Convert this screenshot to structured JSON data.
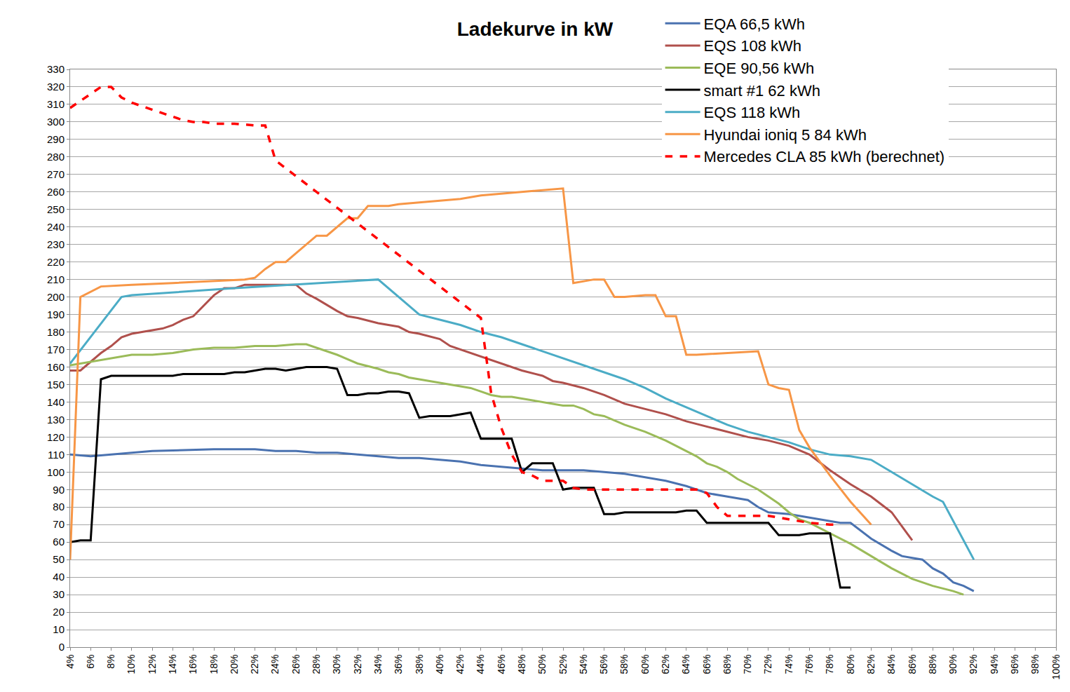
{
  "chart_data": {
    "type": "line",
    "title": "Ladekurve in kW",
    "xlim": [
      4,
      100
    ],
    "xticks": [
      {
        "value": 4,
        "label": "4%"
      },
      {
        "value": 6,
        "label": "6%"
      },
      {
        "value": 8,
        "label": "8%"
      },
      {
        "value": 10,
        "label": "10%"
      },
      {
        "value": 12,
        "label": "12%"
      },
      {
        "value": 14,
        "label": "14%"
      },
      {
        "value": 16,
        "label": "16%"
      },
      {
        "value": 18,
        "label": "18%"
      },
      {
        "value": 20,
        "label": "20%"
      },
      {
        "value": 22,
        "label": "22%"
      },
      {
        "value": 24,
        "label": "24%"
      },
      {
        "value": 26,
        "label": "26%"
      },
      {
        "value": 28,
        "label": "28%"
      },
      {
        "value": 30,
        "label": "30%"
      },
      {
        "value": 32,
        "label": "32%"
      },
      {
        "value": 34,
        "label": "34%"
      },
      {
        "value": 36,
        "label": "36%"
      },
      {
        "value": 38,
        "label": "38%"
      },
      {
        "value": 40,
        "label": "40%"
      },
      {
        "value": 42,
        "label": "42%"
      },
      {
        "value": 44,
        "label": "44%"
      },
      {
        "value": 46,
        "label": "46%"
      },
      {
        "value": 48,
        "label": "48%"
      },
      {
        "value": 50,
        "label": "50%"
      },
      {
        "value": 52,
        "label": "52%"
      },
      {
        "value": 54,
        "label": "54%"
      },
      {
        "value": 56,
        "label": "56%"
      },
      {
        "value": 58,
        "label": "58%"
      },
      {
        "value": 60,
        "label": "60%"
      },
      {
        "value": 62,
        "label": "62%"
      },
      {
        "value": 64,
        "label": "64%"
      },
      {
        "value": 66,
        "label": "66%"
      },
      {
        "value": 68,
        "label": "68%"
      },
      {
        "value": 70,
        "label": "70%"
      },
      {
        "value": 72,
        "label": "72%"
      },
      {
        "value": 74,
        "label": "74%"
      },
      {
        "value": 76,
        "label": "76%"
      },
      {
        "value": 78,
        "label": "78%"
      },
      {
        "value": 80,
        "label": "80%"
      },
      {
        "value": 82,
        "label": "82%"
      },
      {
        "value": 84,
        "label": "84%"
      },
      {
        "value": 86,
        "label": "86%"
      },
      {
        "value": 88,
        "label": "88%"
      },
      {
        "value": 90,
        "label": "90%"
      },
      {
        "value": 92,
        "label": "92%"
      },
      {
        "value": 94,
        "label": "94%"
      },
      {
        "value": 96,
        "label": "96%"
      },
      {
        "value": 98,
        "label": "98%"
      },
      {
        "value": 100,
        "label": "100%"
      }
    ],
    "ylim": [
      0,
      330
    ],
    "yticks": [
      0,
      10,
      20,
      30,
      40,
      50,
      60,
      70,
      80,
      90,
      100,
      110,
      120,
      130,
      140,
      150,
      160,
      170,
      180,
      190,
      200,
      210,
      220,
      230,
      240,
      250,
      260,
      270,
      280,
      290,
      300,
      310,
      320,
      330
    ],
    "grid": true,
    "legend": "top right",
    "series": [
      {
        "name": "EQA 66,5 kWh",
        "color": "#4a72b0",
        "line_style": "solid",
        "x": [
          4,
          6,
          8,
          10,
          12,
          18,
          22,
          24,
          26,
          28,
          30,
          32,
          34,
          36,
          38,
          40,
          42,
          44,
          46,
          48,
          50,
          54,
          56,
          58,
          60,
          62,
          64,
          66,
          68,
          70,
          71,
          72,
          74,
          76,
          78,
          79,
          80,
          82,
          84,
          85,
          86,
          87,
          88,
          89,
          90,
          91,
          92
        ],
        "values": [
          110,
          109,
          110,
          111,
          112,
          113,
          113,
          112,
          112,
          111,
          111,
          110,
          109,
          108,
          108,
          107,
          106,
          104,
          103,
          102,
          101,
          101,
          100,
          99,
          97,
          95,
          92,
          88,
          86,
          84,
          80,
          77,
          76,
          74,
          72,
          71,
          71,
          62,
          55,
          52,
          51,
          50,
          45,
          42,
          37,
          35,
          32
        ]
      },
      {
        "name": "EQS 108 kWh",
        "color": "#b0504c",
        "line_style": "solid",
        "x": [
          4,
          5,
          6,
          7,
          8,
          9,
          10,
          12,
          13,
          14,
          15,
          16,
          17,
          18,
          19,
          20,
          21,
          26,
          27,
          28,
          30,
          31,
          32,
          34,
          36,
          37,
          38,
          40,
          41,
          42,
          44,
          46,
          48,
          50,
          51,
          52,
          54,
          56,
          58,
          60,
          62,
          64,
          66,
          68,
          70,
          72,
          74,
          76,
          78,
          80,
          82,
          84,
          86
        ],
        "values": [
          158,
          158,
          163,
          168,
          172,
          177,
          179,
          181,
          182,
          184,
          187,
          189,
          195,
          201,
          205,
          205,
          207,
          207,
          202,
          199,
          192,
          189,
          188,
          185,
          183,
          180,
          179,
          176,
          172,
          170,
          166,
          162,
          158,
          155,
          152,
          151,
          148,
          144,
          139,
          136,
          133,
          129,
          126,
          123,
          120,
          118,
          115,
          110,
          101,
          93,
          86,
          77,
          61
        ]
      },
      {
        "name": "EQE 90,56 kWh",
        "color": "#9bbb59",
        "line_style": "solid",
        "x": [
          4,
          6,
          8,
          10,
          12,
          14,
          16,
          18,
          20,
          22,
          24,
          26,
          27,
          28,
          30,
          32,
          34,
          35,
          36,
          37,
          38,
          40,
          42,
          43,
          44,
          45,
          46,
          47,
          48,
          50,
          52,
          53,
          54,
          55,
          56,
          58,
          60,
          62,
          63,
          64,
          65,
          66,
          67,
          68,
          69,
          70,
          71,
          72,
          73,
          74,
          75,
          76,
          78,
          80,
          82,
          84,
          85,
          86,
          88,
          90,
          91
        ],
        "values": [
          161,
          163,
          165,
          167,
          167,
          168,
          170,
          171,
          171,
          172,
          172,
          173,
          173,
          171,
          167,
          162,
          159,
          157,
          156,
          154,
          153,
          151,
          149,
          148,
          146,
          144,
          143,
          143,
          142,
          140,
          138,
          138,
          136,
          133,
          132,
          127,
          123,
          118,
          115,
          112,
          109,
          105,
          103,
          100,
          96,
          93,
          90,
          86,
          82,
          77,
          73,
          71,
          65,
          59,
          52,
          45,
          42,
          39,
          35,
          32,
          30
        ]
      },
      {
        "name": "smart #1 62 kWh",
        "color": "#000000",
        "line_style": "solid",
        "x": [
          4,
          5,
          6,
          7,
          8,
          14,
          15,
          19,
          20,
          21,
          22,
          23,
          24,
          25,
          26,
          27,
          29,
          30,
          31,
          32,
          33,
          34,
          35,
          36,
          37,
          38,
          39,
          40,
          41,
          42,
          43,
          44,
          45,
          46,
          47,
          48,
          49,
          50,
          51,
          52,
          53,
          54,
          55,
          56,
          57,
          58,
          63,
          64,
          65,
          66,
          72,
          73,
          74,
          75,
          76,
          78,
          79,
          80
        ],
        "values": [
          60,
          61,
          61,
          153,
          155,
          155,
          156,
          156,
          157,
          157,
          158,
          159,
          159,
          158,
          159,
          160,
          160,
          159,
          144,
          144,
          145,
          145,
          146,
          146,
          145,
          131,
          132,
          132,
          132,
          133,
          134,
          119,
          119,
          119,
          119,
          100,
          105,
          105,
          105,
          90,
          91,
          91,
          91,
          76,
          76,
          77,
          77,
          78,
          78,
          71,
          71,
          64,
          64,
          64,
          65,
          65,
          34,
          34
        ]
      },
      {
        "name": "EQS 118 kWh",
        "color": "#4bacc6",
        "line_style": "solid",
        "x": [
          4,
          9,
          10,
          20,
          34,
          35,
          36,
          38,
          40,
          42,
          44,
          46,
          48,
          50,
          52,
          54,
          56,
          58,
          60,
          62,
          64,
          66,
          68,
          70,
          72,
          74,
          76,
          78,
          80,
          82,
          84,
          86,
          88,
          89,
          92
        ],
        "values": [
          162,
          200,
          201,
          205,
          210,
          205,
          200,
          190,
          187,
          184,
          180,
          177,
          173,
          169,
          165,
          161,
          157,
          153,
          148,
          142,
          137,
          132,
          127,
          123,
          120,
          117,
          113,
          110,
          109,
          107,
          100,
          93,
          86,
          83,
          50
        ]
      },
      {
        "name": "Hyundai ioniq 5 84 kWh",
        "color": "#f79646",
        "line_style": "solid",
        "x": [
          4,
          5,
          7,
          10,
          14,
          18,
          21,
          22,
          23,
          24,
          25,
          26,
          27,
          28,
          29,
          30,
          31,
          32,
          33,
          35,
          36,
          38,
          40,
          42,
          44,
          46,
          48,
          50,
          52,
          53,
          55,
          56,
          57,
          58,
          60,
          61,
          62,
          63,
          64,
          65,
          68,
          71,
          72,
          73,
          74,
          75,
          76,
          78,
          80,
          82
        ],
        "values": [
          50,
          200,
          206,
          207,
          208,
          209,
          210,
          211,
          216,
          220,
          220,
          225,
          230,
          235,
          235,
          240,
          245,
          245,
          252,
          252,
          253,
          254,
          255,
          256,
          258,
          259,
          260,
          261,
          262,
          208,
          210,
          210,
          200,
          200,
          201,
          201,
          189,
          189,
          167,
          167,
          168,
          169,
          150,
          148,
          147,
          124,
          114,
          98,
          83,
          70
        ]
      },
      {
        "name": "Mercedes CLA 85 kWh (berechnet)",
        "color": "#ff0000",
        "line_style": "dashed",
        "x": [
          4,
          5,
          6,
          7,
          8,
          9,
          10,
          12,
          14,
          15,
          16,
          17,
          18,
          20,
          22,
          23,
          24,
          26,
          28,
          30,
          32,
          34,
          36,
          38,
          40,
          42,
          44,
          45,
          46,
          47,
          48,
          49,
          50,
          52,
          53,
          54,
          56,
          58,
          60,
          62,
          64,
          65,
          66,
          67,
          68,
          70,
          72,
          74,
          76,
          78,
          79
        ],
        "values": [
          308,
          312,
          316,
          320,
          320,
          314,
          311,
          307,
          303,
          301,
          300,
          300,
          299,
          299,
          298,
          298,
          278,
          269,
          260,
          251,
          242,
          233,
          224,
          215,
          206,
          197,
          188,
          145,
          125,
          110,
          100,
          98,
          95,
          95,
          91,
          90,
          90,
          90,
          90,
          90,
          90,
          90,
          88,
          80,
          75,
          75,
          75,
          73,
          71,
          70,
          70
        ]
      }
    ]
  }
}
